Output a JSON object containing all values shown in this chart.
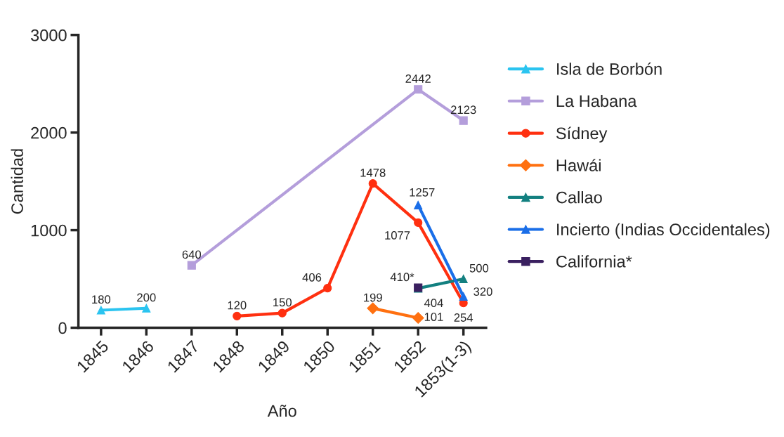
{
  "chart_data": {
    "type": "line",
    "xlabel": "Año",
    "ylabel": "Cantidad",
    "categories": [
      "1845",
      "1846",
      "1847",
      "1848",
      "1849",
      "1850",
      "1851",
      "1852",
      "1853(1-3)"
    ],
    "ylim": [
      0,
      3000
    ],
    "yticks": [
      0,
      1000,
      2000,
      3000
    ],
    "grid": false,
    "legend": "right",
    "series": [
      {
        "name": "Isla de Borbón",
        "color": "#2bc4f0",
        "marker": "triangle",
        "values": [
          180,
          200,
          null,
          null,
          null,
          null,
          null,
          null,
          null
        ],
        "value_labels": [
          "180",
          "200",
          null,
          null,
          null,
          null,
          null,
          null,
          null
        ]
      },
      {
        "name": "La Habana",
        "color": "#b49edb",
        "marker": "square",
        "values": [
          null,
          null,
          640,
          null,
          null,
          null,
          null,
          2442,
          2123
        ],
        "value_labels": [
          null,
          null,
          "640",
          null,
          null,
          null,
          null,
          "2442",
          "2123"
        ]
      },
      {
        "name": "Sídney",
        "color": "#ff3010",
        "marker": "circle",
        "values": [
          null,
          null,
          null,
          120,
          150,
          406,
          1478,
          1077,
          254
        ],
        "value_labels": [
          null,
          null,
          null,
          "120",
          "150",
          "406",
          "1478",
          "1077",
          "254"
        ]
      },
      {
        "name": "Hawái",
        "color": "#ff7010",
        "marker": "diamond",
        "values": [
          null,
          null,
          null,
          null,
          null,
          null,
          199,
          101,
          null
        ],
        "value_labels": [
          null,
          null,
          null,
          null,
          null,
          null,
          "199",
          "101",
          null
        ]
      },
      {
        "name": "Callao",
        "color": "#138080",
        "marker": "triangle",
        "values": [
          null,
          null,
          null,
          null,
          null,
          null,
          null,
          404,
          500
        ],
        "value_labels": [
          null,
          null,
          null,
          null,
          null,
          null,
          null,
          "404",
          "500"
        ]
      },
      {
        "name": "Incierto (Indias Occidentales)",
        "color": "#1a6ee8",
        "marker": "triangle",
        "values": [
          null,
          null,
          null,
          null,
          null,
          null,
          null,
          1257,
          320
        ],
        "value_labels": [
          null,
          null,
          null,
          null,
          null,
          null,
          null,
          "1257",
          "320"
        ]
      },
      {
        "name": "California*",
        "color": "#3a2060",
        "marker": "square",
        "values": [
          null,
          null,
          null,
          null,
          null,
          null,
          null,
          410,
          null
        ],
        "value_labels": [
          null,
          null,
          null,
          null,
          null,
          null,
          null,
          "410*",
          null
        ]
      }
    ]
  }
}
